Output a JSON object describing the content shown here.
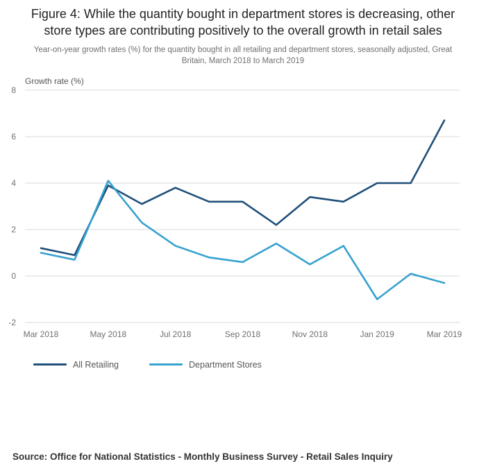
{
  "figure": {
    "title": "Figure 4: While the quantity bought in department stores is decreasing, other store types are contributing positively to the overall growth in retail sales",
    "subtitle": "Year-on-year growth rates (%) for the quantity bought in all retailing and department stores, seasonally adjusted, Great Britain, March 2018 to March 2019",
    "source": "Source: Office for National Statistics - Monthly Business Survey - Retail Sales Inquiry"
  },
  "chart_data": {
    "type": "line",
    "title": "Figure 4: While the quantity bought in department stores is decreasing, other store types are contributing positively to the overall growth in retail sales",
    "axis_label": "Growth rate (%)",
    "xlabel": "",
    "ylabel": "Growth rate (%)",
    "ylim": [
      -2,
      8
    ],
    "y_ticks": [
      -2,
      0,
      2,
      4,
      6,
      8
    ],
    "grid": true,
    "legend_position": "bottom",
    "x": [
      "Mar 2018",
      "Apr 2018",
      "May 2018",
      "Jun 2018",
      "Jul 2018",
      "Aug 2018",
      "Sep 2018",
      "Oct 2018",
      "Nov 2018",
      "Dec 2018",
      "Jan 2019",
      "Feb 2019",
      "Mar 2019"
    ],
    "x_tick_labels": [
      "Mar 2018",
      "May 2018",
      "Jul 2018",
      "Sep 2018",
      "Nov 2018",
      "Jan 2019",
      "Mar 2019"
    ],
    "series": [
      {
        "name": "All Retailing",
        "color": "#1f4e79",
        "values": [
          1.2,
          0.9,
          3.9,
          3.1,
          3.8,
          3.2,
          3.2,
          2.2,
          3.4,
          3.2,
          4.0,
          4.0,
          6.7
        ]
      },
      {
        "name": "Department Stores",
        "color": "#35a1cf",
        "values": [
          1.0,
          0.7,
          4.1,
          2.3,
          1.3,
          0.8,
          0.6,
          1.4,
          0.5,
          1.3,
          -1.0,
          0.1,
          -0.3
        ]
      }
    ],
    "gridline_color": "#d9d9d9"
  }
}
